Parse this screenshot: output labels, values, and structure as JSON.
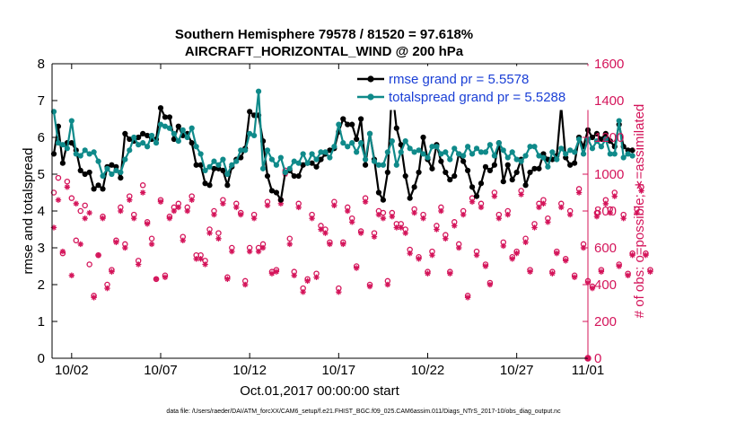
{
  "chart_data": {
    "type": "line",
    "title_line1": "Southern Hemisphere 79578 / 81520 = 97.618%",
    "title_line2": "AIRCRAFT_HORIZONTAL_WIND @ 200 hPa",
    "ylabel_left": "rmse and totalspread",
    "ylabel_right": "# of obs: o=possible; ∗=assimilated",
    "xlabel": "Oct.01,2017 00:00:00 start",
    "footnote": "data file: /Users/raeder/DAI/ATM_forcXX/CAM6_setup/f.e21.FHIST_BGC.f09_025.CAM6assim.011/Diags_NTrS_2017-10/obs_diag_output.nc",
    "xlim": [
      0.9,
      31.0
    ],
    "ylim_left": [
      0,
      8
    ],
    "ylim_right": [
      0,
      1600
    ],
    "x_ticks": [
      {
        "value": 2,
        "label": "10/02"
      },
      {
        "value": 7,
        "label": "10/07"
      },
      {
        "value": 12,
        "label": "10/12"
      },
      {
        "value": 17,
        "label": "10/17"
      },
      {
        "value": 22,
        "label": "10/22"
      },
      {
        "value": 27,
        "label": "10/27"
      },
      {
        "value": 31,
        "label": "11/01"
      }
    ],
    "y_ticks_left": [
      "0",
      "1",
      "2",
      "3",
      "4",
      "5",
      "6",
      "7",
      "8"
    ],
    "y_ticks_right": [
      "0",
      "200",
      "400",
      "600",
      "800",
      "1000",
      "1200",
      "1400",
      "1600"
    ],
    "colors": {
      "rmse": "#000000",
      "spread": "#0f8a8a",
      "obs": "#d4145a",
      "legend_text": "#1a3fd6"
    },
    "series": [
      {
        "name": "rmse",
        "legend": "rmse grand pr = 5.5578",
        "start": 1.0,
        "step": 0.25,
        "values": [
          5.55,
          6.3,
          5.3,
          5.85,
          5.85,
          5.65,
          5.1,
          5.0,
          5.05,
          4.6,
          4.7,
          4.6,
          5.2,
          5.25,
          5.2,
          4.9,
          6.1,
          5.95,
          5.9,
          6.0,
          6.1,
          6.05,
          5.95,
          5.95,
          6.8,
          6.55,
          6.55,
          5.95,
          6.3,
          6.05,
          6.1,
          5.85,
          5.25,
          5.25,
          4.75,
          4.7,
          5.15,
          5.15,
          5.1,
          4.7,
          5.2,
          5.4,
          5.45,
          5.7,
          6.7,
          6.6,
          6.6,
          5.9,
          4.95,
          4.55,
          4.5,
          4.3,
          5.05,
          5.1,
          4.95,
          4.95,
          5.25,
          5.3,
          5.3,
          5.2,
          5.4,
          5.55,
          5.65,
          5.7,
          6.15,
          6.5,
          6.35,
          6.35,
          5.95,
          6.5,
          5.25,
          6.1,
          5.4,
          4.5,
          4.3,
          5.05,
          7.35,
          6.25,
          5.8,
          4.95,
          4.35,
          4.65,
          5.05,
          6.0,
          5.4,
          5.15,
          5.8,
          5.35,
          5.05,
          4.85,
          4.95,
          5.55,
          5.35,
          5.1,
          4.65,
          4.4,
          4.75,
          5.2,
          5.1,
          5.25,
          5.85,
          4.8,
          5.25,
          4.85,
          5.05,
          5.4,
          4.7,
          5.05,
          5.15,
          5.15,
          5.55,
          5.4,
          5.4,
          5.5,
          6.85,
          5.45,
          5.25,
          5.3,
          6.0,
          5.75,
          6.2,
          6.0,
          6.1,
          5.95,
          6.1,
          5.9,
          5.75,
          6.35,
          5.75,
          5.65,
          5.65
        ]
      },
      {
        "name": "totalspread",
        "legend": "totalspread grand pr = 5.5288",
        "start": 1.0,
        "step": 0.25,
        "values": [
          6.7,
          5.85,
          5.8,
          5.7,
          6.45,
          5.55,
          5.5,
          5.65,
          5.55,
          5.6,
          5.35,
          4.95,
          5.15,
          5.0,
          5.1,
          5.05,
          5.4,
          5.65,
          6.0,
          5.8,
          5.85,
          5.75,
          6.05,
          5.85,
          6.35,
          6.3,
          6.25,
          6.1,
          5.9,
          6.2,
          6.0,
          6.25,
          5.75,
          5.55,
          5.1,
          5.2,
          5.35,
          5.25,
          5.4,
          5.0,
          5.25,
          5.35,
          5.65,
          5.65,
          6.1,
          6.05,
          7.25,
          5.15,
          5.65,
          5.4,
          5.25,
          5.45,
          5.05,
          5.15,
          5.35,
          5.3,
          5.55,
          5.3,
          5.55,
          5.4,
          5.6,
          5.6,
          5.45,
          5.75,
          6.35,
          5.85,
          5.75,
          5.85,
          5.6,
          5.85,
          5.4,
          6.1,
          5.35,
          5.25,
          5.25,
          5.6,
          5.9,
          5.25,
          5.6,
          5.9,
          5.7,
          5.6,
          5.65,
          5.55,
          5.45,
          5.75,
          5.75,
          5.55,
          5.6,
          5.4,
          5.7,
          5.55,
          5.5,
          5.75,
          5.55,
          5.7,
          5.6,
          5.6,
          5.8,
          5.5,
          5.85,
          5.65,
          5.45,
          5.6,
          5.4,
          5.35,
          5.5,
          5.75,
          5.75,
          5.5,
          5.45,
          5.2,
          5.6,
          5.4,
          5.7,
          5.55,
          5.65,
          5.6,
          5.95,
          5.55,
          5.95,
          5.7,
          5.9,
          5.75,
          5.95,
          5.55,
          5.55,
          6.45,
          5.45,
          5.55,
          5.5
        ]
      },
      {
        "name": "obs_possible",
        "marker": "o",
        "axis": "right",
        "start": 1.0,
        "step": 0.25,
        "values": [
          900,
          980,
          570,
          960,
          870,
          640,
          800,
          830,
          510,
          340,
          560,
          770,
          400,
          480,
          640,
          820,
          620,
          880,
          780,
          530,
          940,
          740,
          650,
          430,
          860,
          450,
          770,
          820,
          840,
          660,
          820,
          880,
          560,
          560,
          530,
          700,
          800,
          680,
          860,
          440,
          600,
          840,
          790,
          420,
          600,
          780,
          600,
          620,
          850,
          470,
          480,
          860,
          1020,
          650,
          470,
          840,
          380,
          430,
          780,
          460,
          720,
          700,
          630,
          850,
          380,
          630,
          820,
          760,
          500,
          690,
          870,
          400,
          680,
          800,
          790,
          420,
          790,
          730,
          730,
          700,
          590,
          810,
          550,
          780,
          470,
          580,
          720,
          820,
          670,
          470,
          740,
          620,
          800,
          340,
          870,
          580,
          840,
          510,
          410,
          900,
          780,
          630,
          800,
          550,
          580,
          910,
          650,
          480,
          730,
          840,
          860,
          760,
          470,
          580,
          840,
          540,
          800,
          450,
          920,
          620,
          420,
          390,
          790,
          480,
          860,
          810,
          900,
          510,
          780,
          460,
          570,
          810,
          930,
          570,
          480
        ]
      },
      {
        "name": "obs_assimilated",
        "marker": "*",
        "axis": "right",
        "start": 1.0,
        "step": 0.25,
        "values": [
          710,
          860,
          580,
          930,
          450,
          840,
          620,
          760,
          790,
          330,
          560,
          760,
          380,
          470,
          630,
          800,
          600,
          860,
          760,
          510,
          900,
          730,
          620,
          430,
          850,
          440,
          760,
          800,
          820,
          640,
          800,
          860,
          540,
          540,
          510,
          680,
          780,
          650,
          840,
          430,
          580,
          820,
          780,
          400,
          580,
          760,
          580,
          600,
          830,
          460,
          470,
          840,
          1000,
          620,
          450,
          820,
          360,
          420,
          760,
          440,
          700,
          680,
          620,
          830,
          360,
          620,
          800,
          740,
          490,
          680,
          850,
          390,
          660,
          780,
          760,
          400,
          770,
          710,
          710,
          680,
          570,
          790,
          540,
          760,
          460,
          560,
          700,
          800,
          650,
          460,
          720,
          600,
          780,
          330,
          850,
          560,
          820,
          500,
          400,
          880,
          760,
          610,
          780,
          540,
          570,
          890,
          630,
          470,
          710,
          820,
          840,
          740,
          460,
          570,
          820,
          530,
          780,
          440,
          900,
          600,
          410,
          380,
          770,
          470,
          840,
          790,
          880,
          500,
          760,
          450,
          560,
          790,
          910,
          560,
          470
        ]
      }
    ]
  }
}
